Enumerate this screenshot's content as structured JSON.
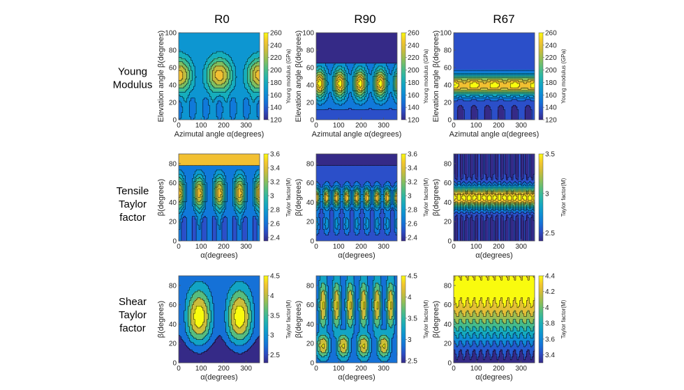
{
  "figure": {
    "columns": [
      "R0",
      "R90",
      "R67"
    ],
    "rows": [
      {
        "id": "young",
        "lines": [
          "Young",
          "Modulus"
        ]
      },
      {
        "id": "tensile",
        "lines": [
          "Tensile",
          "Taylor",
          "factor"
        ]
      },
      {
        "id": "shear",
        "lines": [
          "Shear",
          "Taylor",
          "factor"
        ]
      }
    ]
  },
  "colors": {
    "parula": [
      "#352a87",
      "#2b4fc9",
      "#1079da",
      "#0d96d1",
      "#16aebc",
      "#3dbc92",
      "#7fbf60",
      "#c2bb3d",
      "#f2c032",
      "#f9fb0e"
    ],
    "contour_line": "#000000",
    "axis": "#555555"
  },
  "chart_data": [
    {
      "type": "contour",
      "id": "young-r0",
      "row": 0,
      "col": 0,
      "title": "R0",
      "xlabel": "Azimutal angle α(degrees)",
      "ylabel": "Elevation angle β(degrees)",
      "xlim": [
        0,
        360
      ],
      "ylim": [
        0,
        100
      ],
      "xticks": [
        0,
        100,
        200,
        300
      ],
      "yticks": [
        0,
        20,
        40,
        60,
        80,
        100
      ],
      "colorbar": {
        "label": "Young modulus (GPa)",
        "range": [
          120,
          260
        ],
        "ticks": [
          120,
          140,
          160,
          180,
          200,
          220,
          240,
          260
        ]
      },
      "levels": 10
    },
    {
      "type": "contour",
      "id": "young-r90",
      "row": 0,
      "col": 1,
      "title": "R90",
      "xlabel": "Azimutal angle α(degrees)",
      "ylabel": "Elevation angle β(degrees)",
      "xlim": [
        0,
        360
      ],
      "ylim": [
        0,
        100
      ],
      "xticks": [
        0,
        100,
        200,
        300
      ],
      "yticks": [
        0,
        20,
        40,
        60,
        80,
        100
      ],
      "colorbar": {
        "label": "Young modulus (GPa)",
        "range": [
          120,
          260
        ],
        "ticks": [
          120,
          140,
          160,
          180,
          200,
          220,
          240,
          260
        ]
      },
      "levels": 10
    },
    {
      "type": "contour",
      "id": "young-r67",
      "row": 0,
      "col": 2,
      "title": "R67",
      "xlabel": "Azimutal angle α(degrees)",
      "ylabel": "Elevation angle β(degrees)",
      "xlim": [
        0,
        360
      ],
      "ylim": [
        0,
        100
      ],
      "xticks": [
        0,
        100,
        200,
        300
      ],
      "yticks": [
        0,
        20,
        40,
        60,
        80,
        100
      ],
      "colorbar": {
        "label": "Young modulus (GPa)",
        "range": [
          120,
          260
        ],
        "ticks": [
          120,
          140,
          160,
          180,
          200,
          220,
          240,
          260
        ]
      },
      "levels": 10
    },
    {
      "type": "contour",
      "id": "tensile-r0",
      "row": 1,
      "col": 0,
      "xlabel": "α(degrees)",
      "ylabel": "β(degrees)",
      "xlim": [
        0,
        360
      ],
      "ylim": [
        0,
        90
      ],
      "xticks": [
        0,
        100,
        200,
        300
      ],
      "yticks": [
        0,
        20,
        40,
        60,
        80
      ],
      "colorbar": {
        "label": "Taylor factor(M)",
        "range": [
          2.35,
          3.6
        ],
        "ticks": [
          2.4,
          2.6,
          2.8,
          3,
          3.2,
          3.4,
          3.6
        ]
      },
      "levels": 10
    },
    {
      "type": "contour",
      "id": "tensile-r90",
      "row": 1,
      "col": 1,
      "xlabel": "α(degrees)",
      "ylabel": "β(degrees)",
      "xlim": [
        0,
        360
      ],
      "ylim": [
        0,
        90
      ],
      "xticks": [
        0,
        100,
        200,
        300
      ],
      "yticks": [
        0,
        20,
        40,
        60,
        80
      ],
      "colorbar": {
        "label": "Taylor factor(M)",
        "range": [
          2.35,
          3.6
        ],
        "ticks": [
          2.4,
          2.6,
          2.8,
          3,
          3.2,
          3.4,
          3.6
        ]
      },
      "levels": 10
    },
    {
      "type": "contour",
      "id": "tensile-r67",
      "row": 1,
      "col": 2,
      "xlabel": "α(degrees)",
      "ylabel": "β(degrees)",
      "xlim": [
        0,
        360
      ],
      "ylim": [
        0,
        90
      ],
      "xticks": [
        0,
        100,
        200,
        300
      ],
      "yticks": [
        0,
        20,
        40,
        60,
        80
      ],
      "colorbar": {
        "label": "Taylor factor(M)",
        "range": [
          2.4,
          3.5
        ],
        "ticks": [
          2.5,
          3,
          3.5
        ]
      },
      "levels": 10
    },
    {
      "type": "contour",
      "id": "shear-r0",
      "row": 2,
      "col": 0,
      "xlabel": "α(degrees)",
      "ylabel": "β(degrees)",
      "xlim": [
        0,
        360
      ],
      "ylim": [
        0,
        90
      ],
      "xticks": [
        0,
        100,
        200,
        300
      ],
      "yticks": [
        0,
        20,
        40,
        60,
        80
      ],
      "colorbar": {
        "label": "Taylor factor(M)",
        "range": [
          2.3,
          4.5
        ],
        "ticks": [
          2.5,
          3,
          3.5,
          4,
          4.5
        ]
      },
      "levels": 6
    },
    {
      "type": "contour",
      "id": "shear-r90",
      "row": 2,
      "col": 1,
      "xlabel": "α(degrees)",
      "ylabel": "β(degrees)",
      "xlim": [
        0,
        360
      ],
      "ylim": [
        0,
        90
      ],
      "xticks": [
        0,
        100,
        200,
        300
      ],
      "yticks": [
        0,
        20,
        40,
        60,
        80
      ],
      "colorbar": {
        "label": "Taylor factor(M)",
        "range": [
          2.45,
          4.5
        ],
        "ticks": [
          2.5,
          3,
          3.5,
          4,
          4.5
        ]
      },
      "levels": 6
    },
    {
      "type": "contour",
      "id": "shear-r67",
      "row": 2,
      "col": 2,
      "xlabel": "α(degrees)",
      "ylabel": "β(degrees)",
      "xlim": [
        0,
        360
      ],
      "ylim": [
        0,
        90
      ],
      "xticks": [
        0,
        100,
        200,
        300
      ],
      "yticks": [
        0,
        20,
        40,
        60,
        80
      ],
      "colorbar": {
        "label": "Taylor factor(M)",
        "range": [
          3.3,
          4.4
        ],
        "ticks": [
          3.4,
          3.6,
          3.8,
          4,
          4.2,
          4.4
        ]
      },
      "levels": 8
    }
  ]
}
